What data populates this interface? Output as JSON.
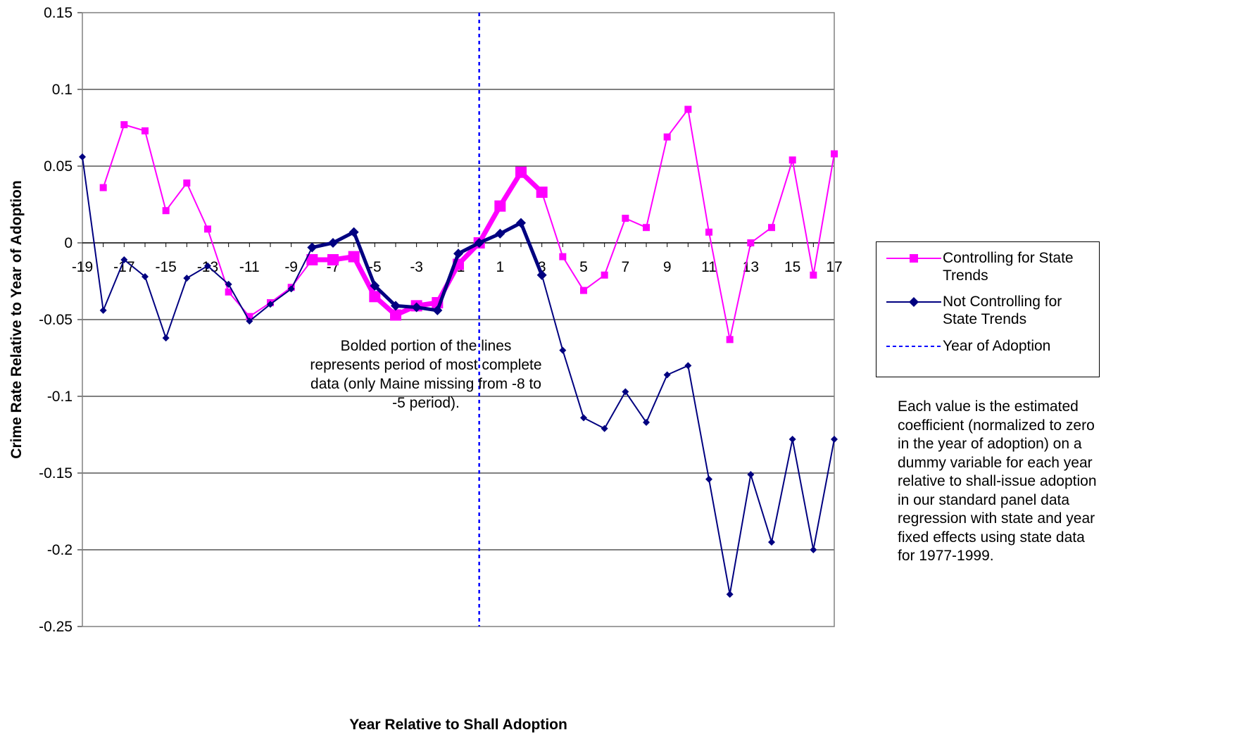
{
  "chart_data": {
    "type": "line",
    "xlabel": "Year Relative to Shall Adoption",
    "ylabel": "Crime Rate Relative to Year of Adoption",
    "ylim": [
      -0.25,
      0.15
    ],
    "xlim": [
      -19,
      17
    ],
    "y_ticks": [
      "0.15",
      "0.1",
      "0.05",
      "0",
      "-0.05",
      "-0.1",
      "-0.15",
      "-0.2",
      "-0.25"
    ],
    "x_ticks": [
      "-19",
      "-17",
      "-15",
      "-13",
      "-11",
      "-9",
      "-7",
      "-5",
      "-3",
      "-1",
      "1",
      "3",
      "5",
      "7",
      "9",
      "11",
      "13",
      "15",
      "17"
    ],
    "grid": "horizontal",
    "legend_position": "right",
    "bold_range": [
      -8,
      3
    ],
    "series": [
      {
        "name": "Controlling for State Trends",
        "color": "#ff00ff",
        "marker": "square",
        "x": [
          -18,
          -17,
          -16,
          -15,
          -14,
          -13,
          -12,
          -11,
          -10,
          -9,
          -8,
          -7,
          -6,
          -5,
          -4,
          -3,
          -2,
          -1,
          0,
          1,
          2,
          3,
          4,
          5,
          6,
          7,
          8,
          9,
          10,
          11,
          12,
          13,
          14,
          15,
          16,
          17
        ],
        "y": [
          0.036,
          0.077,
          0.073,
          0.021,
          0.039,
          0.009,
          -0.032,
          -0.048,
          -0.039,
          -0.029,
          -0.011,
          -0.011,
          -0.009,
          -0.035,
          -0.047,
          -0.041,
          -0.039,
          -0.014,
          0,
          0.024,
          0.046,
          0.033,
          -0.009,
          -0.031,
          -0.021,
          0.016,
          0.01,
          0.069,
          0.087,
          0.007,
          -0.063,
          0,
          0.01,
          0.054,
          -0.021,
          0.058
        ]
      },
      {
        "name": "Not Controlling for State Trends",
        "color": "#000080",
        "marker": "diamond",
        "x": [
          -19,
          -18,
          -17,
          -16,
          -15,
          -14,
          -13,
          -12,
          -11,
          -10,
          -9,
          -8,
          -7,
          -6,
          -5,
          -4,
          -3,
          -2,
          -1,
          0,
          1,
          2,
          3,
          4,
          5,
          6,
          7,
          8,
          9,
          10,
          11,
          12,
          13,
          14,
          15,
          16,
          17
        ],
        "y": [
          0.056,
          -0.044,
          -0.011,
          -0.022,
          -0.062,
          -0.023,
          -0.015,
          -0.027,
          -0.051,
          -0.04,
          -0.03,
          -0.003,
          0,
          0.007,
          -0.028,
          -0.041,
          -0.042,
          -0.044,
          -0.007,
          0,
          0.006,
          0.013,
          -0.021,
          -0.07,
          -0.114,
          -0.121,
          -0.097,
          -0.117,
          -0.086,
          -0.08,
          -0.154,
          -0.229,
          -0.151,
          -0.195,
          -0.128,
          -0.2,
          -0.128
        ]
      }
    ],
    "reference_line": {
      "name": "Year of Adoption",
      "x": 0,
      "color": "#0000ff",
      "style": "dotted"
    },
    "annotation": "Bolded portion of the lines represents period of most complete data (only Maine missing from -8 to -5 period).",
    "note": "Each value is the estimated coefficient (normalized to zero in the year of adoption) on a dummy variable for each year relative to shall-issue adoption in our standard panel data regression with state and year fixed effects using state data for 1977-1999."
  },
  "legend": {
    "items": [
      {
        "label": "Controlling for State Trends"
      },
      {
        "label": "Not Controlling for State Trends"
      },
      {
        "label": "Year of Adoption"
      }
    ]
  }
}
